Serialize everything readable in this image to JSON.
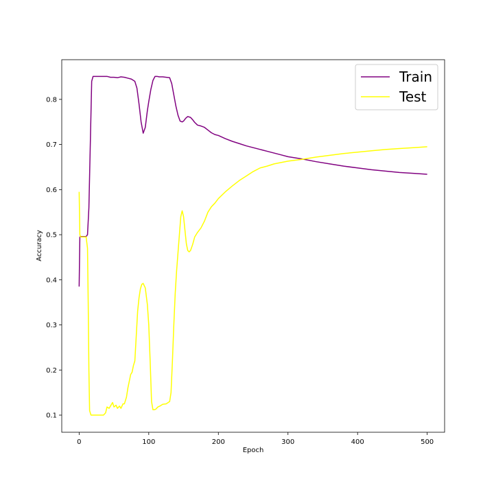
{
  "chart_data": {
    "type": "line",
    "xlabel": "Epoch",
    "ylabel": "Accuracy",
    "xlim": [
      -25,
      525
    ],
    "ylim": [
      0.062,
      0.888
    ],
    "xticks": [
      0,
      100,
      200,
      300,
      400,
      500
    ],
    "yticks": [
      0.1,
      0.2,
      0.3,
      0.4,
      0.5,
      0.6,
      0.7,
      0.8
    ],
    "ytick_labels": [
      "0.1",
      "0.2",
      "0.3",
      "0.4",
      "0.5",
      "0.6",
      "0.7",
      "0.8"
    ],
    "xtick_labels": [
      "0",
      "100",
      "200",
      "300",
      "400",
      "500"
    ],
    "grid": false,
    "legend_position": "top-right",
    "series": [
      {
        "name": "Train",
        "color": "#800080",
        "x": [
          0,
          1,
          2,
          10,
          12,
          14,
          16,
          18,
          20,
          30,
          40,
          45,
          50,
          55,
          60,
          65,
          70,
          75,
          80,
          83,
          86,
          89,
          92,
          95,
          98,
          100,
          103,
          106,
          109,
          112,
          115,
          120,
          125,
          130,
          133,
          136,
          139,
          142,
          145,
          148,
          150,
          153,
          156,
          160,
          163,
          166,
          170,
          175,
          180,
          185,
          190,
          195,
          200,
          210,
          220,
          230,
          240,
          250,
          260,
          270,
          280,
          290,
          300,
          320,
          340,
          360,
          380,
          400,
          420,
          440,
          460,
          480,
          500
        ],
        "y": [
          0.385,
          0.495,
          0.496,
          0.496,
          0.5,
          0.56,
          0.7,
          0.84,
          0.851,
          0.851,
          0.851,
          0.849,
          0.849,
          0.848,
          0.85,
          0.849,
          0.847,
          0.845,
          0.84,
          0.825,
          0.79,
          0.75,
          0.725,
          0.738,
          0.775,
          0.795,
          0.822,
          0.842,
          0.851,
          0.851,
          0.85,
          0.85,
          0.849,
          0.848,
          0.835,
          0.81,
          0.785,
          0.765,
          0.752,
          0.75,
          0.752,
          0.758,
          0.762,
          0.76,
          0.755,
          0.749,
          0.743,
          0.741,
          0.738,
          0.732,
          0.726,
          0.722,
          0.72,
          0.713,
          0.707,
          0.702,
          0.697,
          0.693,
          0.689,
          0.685,
          0.681,
          0.677,
          0.673,
          0.668,
          0.662,
          0.657,
          0.652,
          0.648,
          0.644,
          0.641,
          0.638,
          0.636,
          0.634
        ]
      },
      {
        "name": "Test",
        "color": "#ffff00",
        "x": [
          0,
          1,
          2,
          5,
          10,
          12,
          13,
          14,
          15,
          17,
          20,
          25,
          30,
          35,
          38,
          40,
          43,
          45,
          48,
          50,
          53,
          55,
          58,
          60,
          63,
          65,
          68,
          70,
          72,
          74,
          76,
          78,
          80,
          82,
          84,
          86,
          88,
          90,
          92,
          95,
          98,
          100,
          102,
          104,
          106,
          108,
          110,
          113,
          116,
          120,
          125,
          130,
          132,
          134,
          136,
          138,
          140,
          142,
          144,
          146,
          148,
          150,
          152,
          154,
          156,
          158,
          160,
          163,
          166,
          170,
          175,
          180,
          185,
          190,
          195,
          200,
          210,
          220,
          230,
          240,
          250,
          260,
          270,
          280,
          290,
          300,
          320,
          340,
          360,
          380,
          400,
          420,
          440,
          460,
          480,
          500
        ],
        "y": [
          0.595,
          0.5,
          0.495,
          0.495,
          0.495,
          0.47,
          0.35,
          0.2,
          0.11,
          0.1,
          0.1,
          0.1,
          0.1,
          0.1,
          0.105,
          0.118,
          0.115,
          0.12,
          0.128,
          0.118,
          0.122,
          0.115,
          0.12,
          0.115,
          0.125,
          0.125,
          0.14,
          0.16,
          0.175,
          0.19,
          0.195,
          0.21,
          0.22,
          0.275,
          0.33,
          0.36,
          0.38,
          0.39,
          0.392,
          0.382,
          0.345,
          0.3,
          0.22,
          0.13,
          0.112,
          0.112,
          0.113,
          0.118,
          0.12,
          0.124,
          0.125,
          0.13,
          0.15,
          0.22,
          0.3,
          0.37,
          0.42,
          0.46,
          0.5,
          0.54,
          0.553,
          0.54,
          0.51,
          0.48,
          0.465,
          0.462,
          0.465,
          0.478,
          0.495,
          0.505,
          0.515,
          0.53,
          0.55,
          0.562,
          0.57,
          0.58,
          0.595,
          0.608,
          0.62,
          0.63,
          0.64,
          0.648,
          0.652,
          0.657,
          0.66,
          0.663,
          0.667,
          0.672,
          0.676,
          0.68,
          0.683,
          0.686,
          0.689,
          0.691,
          0.693,
          0.695
        ]
      }
    ]
  }
}
